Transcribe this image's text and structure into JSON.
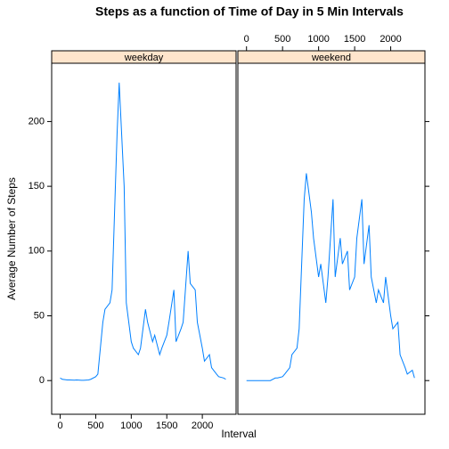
{
  "chart_data": {
    "type": "line",
    "title": "Steps as a function of Time of Day in 5 Min Intervals",
    "xlabel": "Interval",
    "ylabel": "Average Number of Steps",
    "x": [
      0,
      30,
      100,
      130,
      200,
      230,
      300,
      330,
      400,
      430,
      500,
      530,
      600,
      630,
      700,
      730,
      800,
      830,
      900,
      930,
      1000,
      1030,
      1100,
      1130,
      1200,
      1230,
      1300,
      1330,
      1400,
      1430,
      1500,
      1530,
      1600,
      1630,
      1700,
      1730,
      1800,
      1830,
      1900,
      1930,
      2000,
      2030,
      2100,
      2130,
      2200,
      2230,
      2300,
      2330
    ],
    "series": [
      {
        "name": "weekday",
        "color": "#0080ff",
        "values": [
          2,
          1,
          0.5,
          0.5,
          0.3,
          0.5,
          0.2,
          0.2,
          0.5,
          1,
          3,
          5,
          45,
          55,
          60,
          70,
          190,
          230,
          150,
          60,
          30,
          25,
          20,
          25,
          55,
          45,
          30,
          35,
          20,
          25,
          35,
          45,
          70,
          30,
          40,
          45,
          100,
          75,
          70,
          45,
          25,
          15,
          20,
          10,
          5,
          3,
          2,
          1
        ]
      },
      {
        "name": "weekend",
        "color": "#0080ff",
        "values": [
          0,
          0,
          0,
          0,
          0,
          0,
          0,
          0,
          2,
          2,
          3,
          5,
          10,
          20,
          25,
          40,
          140,
          160,
          130,
          110,
          80,
          90,
          60,
          80,
          140,
          80,
          110,
          90,
          100,
          70,
          80,
          110,
          140,
          90,
          120,
          80,
          60,
          70,
          60,
          80,
          50,
          40,
          45,
          20,
          10,
          5,
          8,
          2
        ]
      }
    ],
    "xlim": [
      -120,
      2475
    ],
    "ylim": [
      -26,
      245
    ],
    "xticks": [
      0,
      500,
      1000,
      1500,
      2000
    ],
    "yticks": [
      0,
      50,
      100,
      150,
      200
    ]
  }
}
